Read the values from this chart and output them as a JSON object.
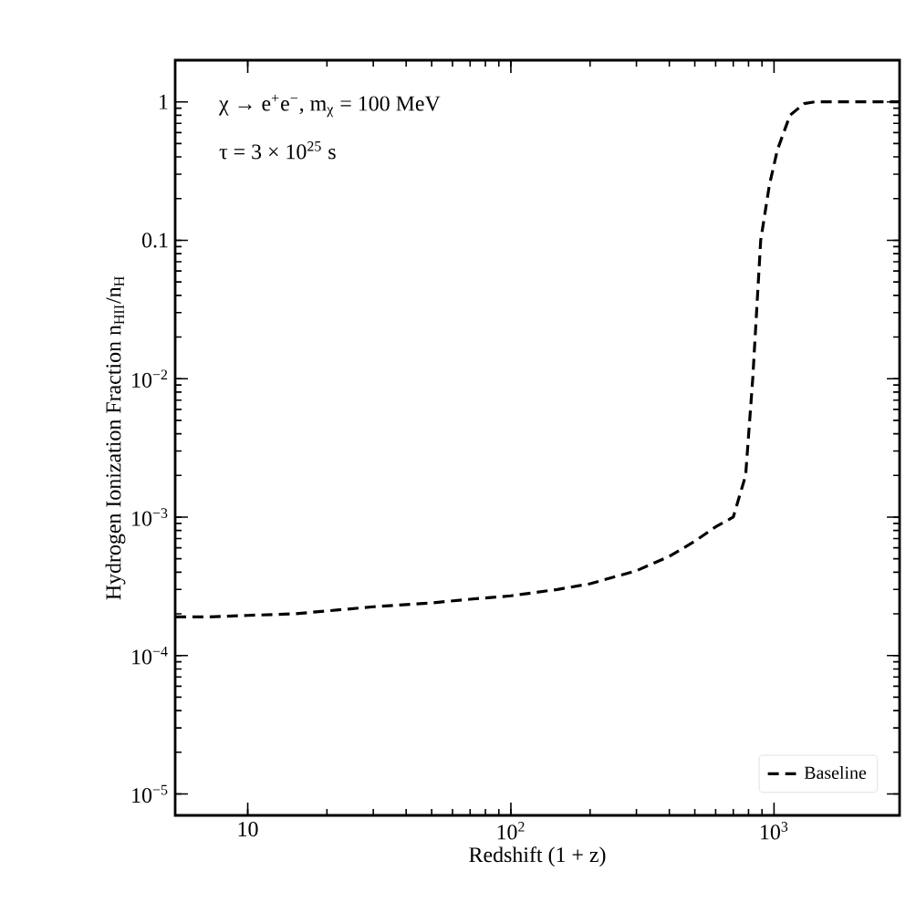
{
  "chart_data": {
    "type": "line",
    "xlabel": "Redshift (1 + z)",
    "ylabel": "Hydrogen Ionization Fraction n$_{HII}$/n$_{H}$",
    "annotations": [
      "χ → e$^{+}$e$^{−}$, m$_{χ}$ = 100 MeV",
      "τ = 3 × 10$^{25}$ s"
    ],
    "x": [
      5.3,
      7,
      10,
      15,
      20,
      30,
      50,
      70,
      100,
      150,
      200,
      300,
      400,
      500,
      600,
      700,
      780,
      830,
      890,
      960,
      1030,
      1150,
      1300,
      1430,
      1600,
      2000,
      2500,
      3000
    ],
    "series": [
      {
        "name": "Baseline",
        "color": "#000000",
        "line_style": "dashed",
        "values": [
          0.00019,
          0.00019,
          0.000195,
          0.0002,
          0.00021,
          0.000225,
          0.00024,
          0.000255,
          0.00027,
          0.0003,
          0.00033,
          0.00041,
          0.00052,
          0.00067,
          0.00085,
          0.001,
          0.002,
          0.01,
          0.1,
          0.25,
          0.45,
          0.8,
          0.97,
          1.0,
          1.0,
          1.0,
          1.0,
          1.0
        ]
      }
    ],
    "xlim": [
      5.3,
      3000
    ],
    "ylim": [
      7e-06,
      2
    ],
    "xticks": [
      10,
      {
        "value": 100,
        "label": "10$^{2}$"
      },
      {
        "value": 1000,
        "label": "10$^{3}$"
      }
    ],
    "yticks": [
      {
        "value": 1e-05,
        "label": "10$^{−5}$"
      },
      {
        "value": 0.0001,
        "label": "10$^{−4}$"
      },
      {
        "value": 0.001,
        "label": "10$^{−3}$"
      },
      {
        "value": 0.01,
        "label": "10$^{−2}$"
      },
      0.1,
      1
    ],
    "log": "xy",
    "legend": "bottom right"
  }
}
